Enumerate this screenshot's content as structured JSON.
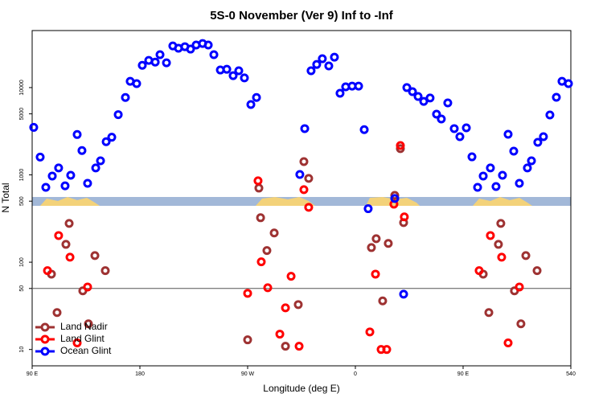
{
  "chart_data": {
    "type": "scatter",
    "title": "5S-0 November (Ver 9)   Inf to -Inf",
    "x_label": "Longitude (deg E)",
    "y_label": "N Total",
    "log_y": true,
    "hline": 50,
    "legend": "bottom-left",
    "xlim": [
      90,
      540
    ],
    "ylim": [
      6.5,
      45000
    ],
    "xticks": [
      {
        "value": 90,
        "label": "90 E"
      },
      180,
      {
        "value": 270,
        "label": "90 W"
      },
      {
        "value": 360,
        "label": "0"
      },
      {
        "value": 450,
        "label": "90 E"
      },
      540
    ],
    "yticks": [
      10,
      50,
      100,
      500,
      1000,
      5000,
      10000
    ],
    "series": [
      {
        "name": "Land Nadir",
        "color": "#9e3232",
        "x": [
          106.1,
          110.8,
          118.2,
          120.9,
          132.3,
          137,
          142.4,
          151.1,
          270,
          279.4,
          280.8,
          286.1,
          292.2,
          301.6,
          312.3,
          317,
          321,
          397.6,
          400.3,
          373.4,
          377.4,
          382.8,
          387.5,
          392.9,
          466.8,
          471.5,
          479.5,
          481.5,
          492.9,
          498.3,
          502.4,
          511.8
        ],
        "values": [
          73,
          26.5,
          160,
          278,
          47,
          19.7,
          119,
          80,
          12.9,
          706,
          323,
          136,
          216,
          10.9,
          32.7,
          1420,
          912,
          2000,
          284,
          147,
          186,
          36,
          164,
          583,
          73,
          26.5,
          160,
          278,
          47,
          19.7,
          119,
          80
        ]
      },
      {
        "name": "Land Glint",
        "color": "#ff0000",
        "x": [
          102.8,
          112.1,
          121.6,
          127.6,
          136.3,
          270,
          278.7,
          281.4,
          286.8,
          296.9,
          301.6,
          306.3,
          313,
          317,
          321,
          372.1,
          376.8,
          381.5,
          386.2,
          392.2,
          397.6,
          400.9,
          463.4,
          472.8,
          482.2,
          487.6,
          497
        ],
        "values": [
          80,
          202,
          114,
          11.9,
          52,
          44,
          855,
          101,
          51,
          15,
          30,
          69,
          10.9,
          678,
          425,
          15.9,
          73,
          10,
          10,
          462,
          2170,
          330,
          80,
          202,
          114,
          11.9,
          52
        ]
      },
      {
        "name": "Ocean Glint",
        "color": "#0000ff",
        "x": [
          91.3,
          96.7,
          101.4,
          106.8,
          112.1,
          117.5,
          122.2,
          127.6,
          131.6,
          136.3,
          143.1,
          147.1,
          151.8,
          156.5,
          161.9,
          167.9,
          171.9,
          177.3,
          182,
          187.4,
          192.8,
          196.8,
          202.2,
          207.5,
          212.2,
          217.6,
          222.3,
          227,
          232.4,
          237.1,
          241.8,
          247.2,
          252.6,
          257.9,
          262.6,
          267.3,
          272.7,
          277.4,
          313.6,
          317.7,
          323,
          327.7,
          332.4,
          337.8,
          342.5,
          347.2,
          351.9,
          357.3,
          362.7,
          367.4,
          370.7,
          392.9,
          400.3,
          403,
          407.7,
          412.4,
          417.1,
          422.4,
          427.8,
          431.8,
          437.2,
          442.6,
          447.3,
          452.7,
          457.4,
          462.1,
          466.8,
          472.8,
          477.5,
          482.9,
          487.6,
          492.3,
          497,
          503.7,
          507.1,
          512.4,
          517.1,
          522.5,
          527.9,
          532.6,
          538
        ],
        "values": [
          3500,
          1600,
          720,
          970,
          1200,
          750,
          990,
          2900,
          1900,
          800,
          1200,
          1450,
          2400,
          2700,
          4900,
          7700,
          11800,
          11100,
          18000,
          20500,
          19600,
          23800,
          19200,
          30000,
          28200,
          29400,
          27600,
          30700,
          32000,
          30700,
          23800,
          15900,
          16200,
          13700,
          15600,
          12900,
          6400,
          7700,
          1010,
          3390,
          15600,
          18400,
          21400,
          17700,
          22300,
          8600,
          10200,
          10400,
          10400,
          3300,
          410,
          537,
          43,
          10000,
          8980,
          7900,
          6950,
          7600,
          4960,
          4370,
          6670,
          3390,
          2740,
          3460,
          1610,
          720,
          970,
          1200,
          735,
          990,
          2920,
          1870,
          800,
          1200,
          1450,
          2360,
          2740,
          4860,
          7740,
          11800,
          11100
        ]
      }
    ]
  }
}
